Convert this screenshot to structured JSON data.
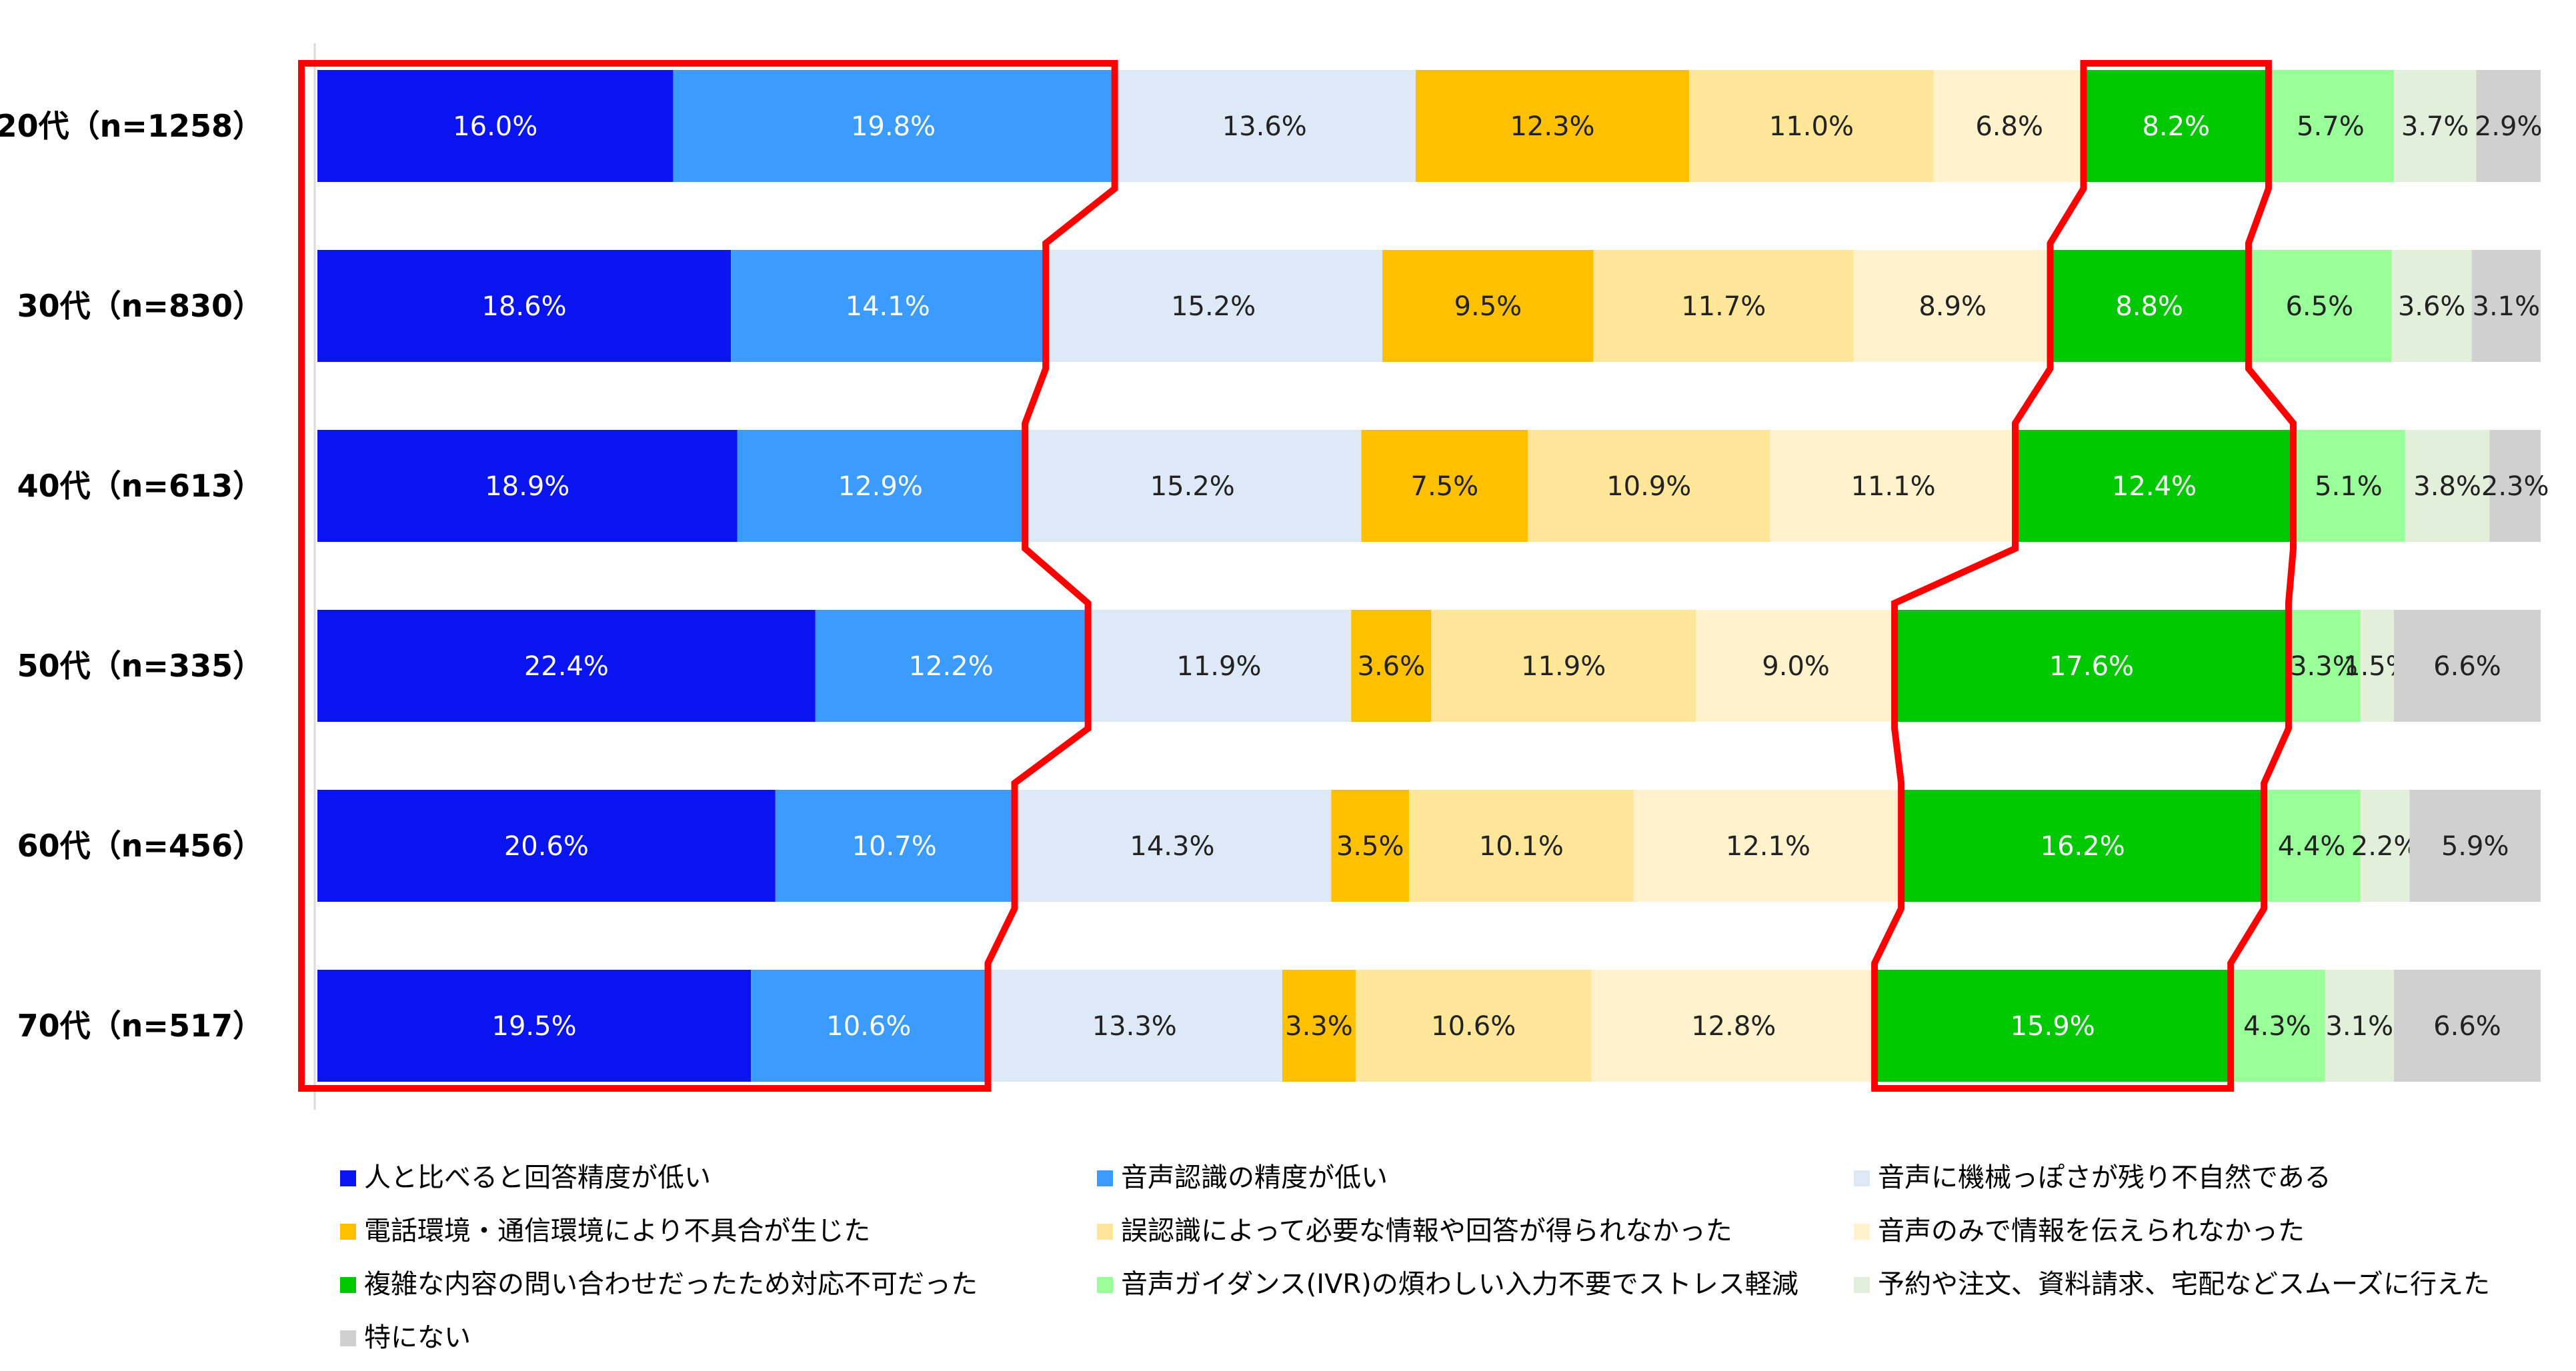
{
  "chart_data": {
    "type": "bar",
    "orientation": "horizontal",
    "stacked": "percent",
    "grid": false,
    "legend_position": "bottom",
    "categories": [
      "20代（n=1258）",
      "30代（n=830）",
      "40代（n=613）",
      "50代（n=335）",
      "60代（n=456）",
      "70代（n=517）"
    ],
    "series": [
      {
        "name": "人と比べると回答精度が低い",
        "color": "#0a14f0",
        "values": [
          16.0,
          18.6,
          18.9,
          22.4,
          20.6,
          19.5
        ],
        "labels": [
          "16.0%",
          "18.6%",
          "18.9%",
          "22.4%",
          "20.6%",
          "19.5%"
        ]
      },
      {
        "name": "音声認識の精度が低い",
        "color": "#3b9bff",
        "values": [
          19.8,
          14.1,
          12.9,
          12.2,
          10.7,
          10.6
        ],
        "labels": [
          "19.8%",
          "14.1%",
          "12.9%",
          "12.2%",
          "10.7%",
          "10.6%"
        ]
      },
      {
        "name": "音声に機械っぽさが残り不自然である",
        "color": "#dde9f6",
        "values": [
          13.6,
          15.2,
          15.2,
          11.9,
          14.3,
          13.3
        ],
        "labels": [
          "13.6%",
          "15.2%",
          "15.2%",
          "11.9%",
          "14.3%",
          "13.3%"
        ]
      },
      {
        "name": "電話環境・通信環境により不具合が生じた",
        "color": "#ffc000",
        "values": [
          12.3,
          9.5,
          7.5,
          3.6,
          3.5,
          3.3
        ],
        "labels": [
          "12.3%",
          "9.5%",
          "7.5%",
          "3.6%",
          "3.5%",
          "3.3%"
        ]
      },
      {
        "name": "誤認識によって必要な情報や回答が得られなかった",
        "color": "#ffe699",
        "values": [
          11.0,
          11.7,
          10.9,
          11.9,
          10.1,
          10.6
        ],
        "labels": [
          "11.0%",
          "11.7%",
          "10.9%",
          "11.9%",
          "10.1%",
          "10.6%"
        ]
      },
      {
        "name": "音声のみで情報を伝えられなかった",
        "color": "#fff2cc",
        "values": [
          6.8,
          8.9,
          11.1,
          9.0,
          12.1,
          12.8
        ],
        "labels": [
          "6.8%",
          "8.9%",
          "11.1%",
          "9.0%",
          "12.1%",
          "12.8%"
        ]
      },
      {
        "name": "複雑な内容の問い合わせだったため対応不可だった",
        "color": "#00c800",
        "values": [
          8.2,
          8.8,
          12.4,
          17.6,
          16.2,
          15.9
        ],
        "labels": [
          "8.2%",
          "8.8%",
          "12.4%",
          "17.6%",
          "16.2%",
          "15.9%"
        ]
      },
      {
        "name": "音声ガイダンス(IVR)の煩わしい入力不要でストレス軽減",
        "color": "#99ff99",
        "values": [
          5.7,
          6.5,
          5.1,
          3.3,
          4.4,
          4.3
        ],
        "labels": [
          "5.7%",
          "6.5%",
          "5.1%",
          "3.3%",
          "4.4%",
          "4.3%"
        ]
      },
      {
        "name": "予約や注文、資料請求、宅配などスムーズに行えた",
        "color": "#e2efda",
        "values": [
          3.7,
          3.6,
          3.8,
          1.5,
          2.2,
          3.1
        ],
        "labels": [
          "3.7%",
          "3.6%",
          "3.8%",
          "1.5%",
          "2.2%",
          "3.1%"
        ]
      },
      {
        "name": "特にない",
        "color": "#d0d0d0",
        "values": [
          2.9,
          3.1,
          2.3,
          6.6,
          5.9,
          6.6
        ],
        "labels": [
          "2.9%",
          "3.1%",
          "2.3%",
          "6.6%",
          "5.9%",
          "6.6%"
        ]
      }
    ],
    "highlight_groups": [
      {
        "color": "#ff0000",
        "series": [
          "人と比べると回答精度が低い",
          "音声認識の精度が低い"
        ]
      },
      {
        "color": "#ff0000",
        "series": [
          "複雑な内容の問い合わせだったため対応不可だった"
        ]
      }
    ]
  }
}
